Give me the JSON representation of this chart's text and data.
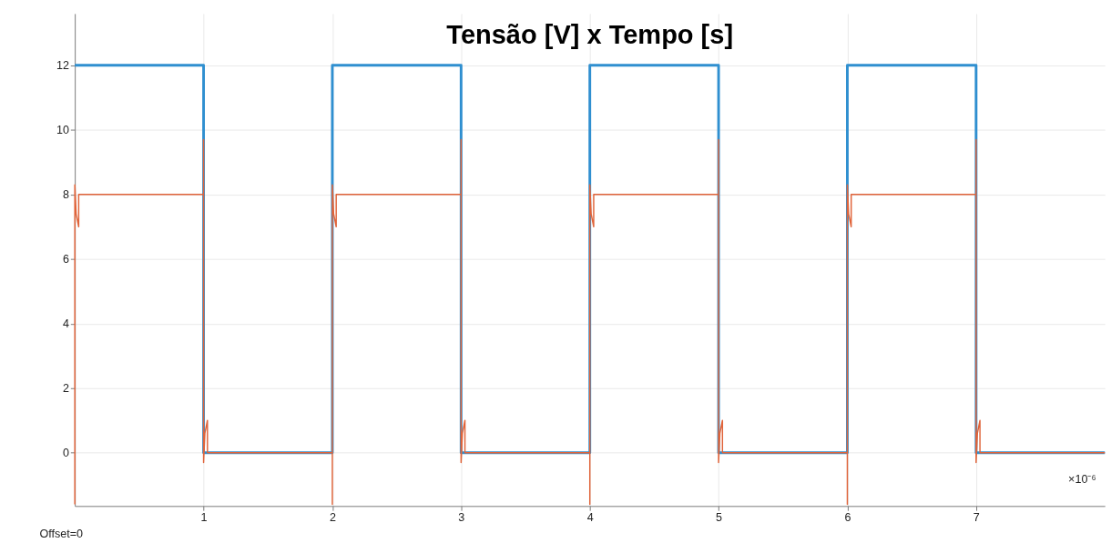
{
  "chart_data": {
    "type": "line",
    "title": "Tensão [V] x Tempo [s]",
    "xlim": [
      0,
      8
    ],
    "xticks": [
      1,
      2,
      3,
      4,
      5,
      6,
      7
    ],
    "ylim": [
      -1.65,
      13.6
    ],
    "yticks": [
      0,
      2,
      4,
      6,
      8,
      10,
      12
    ],
    "grid": true,
    "line_style": "solid",
    "marker": "none",
    "annotations": [
      "×10⁻⁶",
      "Offset=0"
    ],
    "series": [
      {
        "color": "#2f8fd0",
        "x": [
          0,
          1,
          1,
          2,
          2,
          3,
          3,
          4,
          4,
          5,
          5,
          6,
          6,
          7,
          7,
          8
        ],
        "values": [
          12,
          12,
          0,
          0,
          12,
          12,
          0,
          0,
          12,
          12,
          0,
          0,
          12,
          12,
          0,
          0
        ]
      },
      {
        "color": "#e0643a",
        "x": [
          0,
          0,
          0.01,
          0.03,
          0.03,
          1,
          1,
          1,
          1.01,
          1.03,
          1.03,
          2,
          2,
          2,
          2.01,
          2.03,
          2.03,
          3,
          3,
          3,
          3.01,
          3.03,
          3.03,
          4,
          4,
          4,
          4.01,
          4.03,
          4.03,
          5,
          5,
          5,
          5.01,
          5.03,
          5.03,
          6,
          6,
          6,
          6.01,
          6.03,
          6.03,
          7,
          7,
          7,
          7.01,
          7.03,
          7.03,
          8
        ],
        "values": [
          -1.6,
          8.3,
          7.4,
          7,
          8,
          8,
          9.7,
          -0.3,
          0.6,
          1,
          0,
          0,
          -1.6,
          8.3,
          7.4,
          7,
          8,
          8,
          9.7,
          -0.3,
          0.6,
          1,
          0,
          0,
          -1.6,
          8.3,
          7.4,
          7,
          8,
          8,
          9.7,
          -0.3,
          0.6,
          1,
          0,
          0,
          -1.6,
          8.3,
          7.4,
          7,
          8,
          8,
          9.7,
          -0.3,
          0.6,
          1,
          0,
          0
        ]
      }
    ]
  }
}
